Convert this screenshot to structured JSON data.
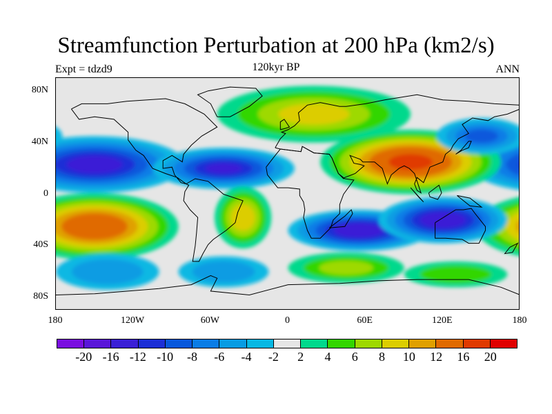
{
  "title": "Streamfunction Perturbation at 200 hPa (km2/s)",
  "left_subtitle": "Expt = tdzd9",
  "center_subtitle": "120kyr BP",
  "right_subtitle": "ANN",
  "map": {
    "projection": "cylindrical equidistant",
    "lon_range": [
      -180,
      180
    ],
    "lat_range": [
      -90,
      90
    ],
    "x_tick_labels": [
      "180",
      "120W",
      "60W",
      "0",
      "60E",
      "120E",
      "180"
    ],
    "y_tick_labels": [
      "80N",
      "40N",
      "0",
      "40S",
      "80S"
    ],
    "coastlines": true
  },
  "colorbar": {
    "labels": [
      "-20",
      "-16",
      "-12",
      "-10",
      "-8",
      "-6",
      "-4",
      "-2",
      "2",
      "4",
      "6",
      "8",
      "10",
      "12",
      "16",
      "20"
    ],
    "colors": [
      "#7a0ee0",
      "#5a16d9",
      "#3a1fd6",
      "#1c2fd6",
      "#0858dc",
      "#0a7de6",
      "#079ce3",
      "#08b8e3",
      "#e6e6e6",
      "#00d98c",
      "#33d600",
      "#9ed900",
      "#dccd00",
      "#e0a000",
      "#e06a00",
      "#e03a00",
      "#e00000"
    ]
  },
  "chart_data": {
    "type": "heatmap",
    "title": "Streamfunction Perturbation at 200 hPa (km2/s)",
    "variable": "Streamfunction Perturbation at 200 hPa (km2/s)",
    "units": "km2/s",
    "contour_levels": [
      -20,
      -16,
      -12,
      -10,
      -8,
      -6,
      -4,
      -2,
      2,
      4,
      6,
      8,
      10,
      12,
      16,
      20
    ],
    "features": [
      {
        "lon": -150,
        "lat": 23,
        "value": -13
      },
      {
        "lon": -50,
        "lat": 20,
        "value": -12
      },
      {
        "lon": -150,
        "lat": -25,
        "value": 15
      },
      {
        "lon": -35,
        "lat": -18,
        "value": 9
      },
      {
        "lon": 20,
        "lat": 62,
        "value": 8
      },
      {
        "lon": 95,
        "lat": 25,
        "value": 17
      },
      {
        "lon": 55,
        "lat": -28,
        "value": -14
      },
      {
        "lon": 120,
        "lat": -20,
        "value": -14
      },
      {
        "lon": 150,
        "lat": 45,
        "value": -8
      },
      {
        "lon": 45,
        "lat": -57,
        "value": 6
      },
      {
        "lon": 130,
        "lat": -62,
        "value": 5
      },
      {
        "lon": -140,
        "lat": -60,
        "value": -5
      },
      {
        "lon": -50,
        "lat": -60,
        "value": -5
      }
    ]
  }
}
